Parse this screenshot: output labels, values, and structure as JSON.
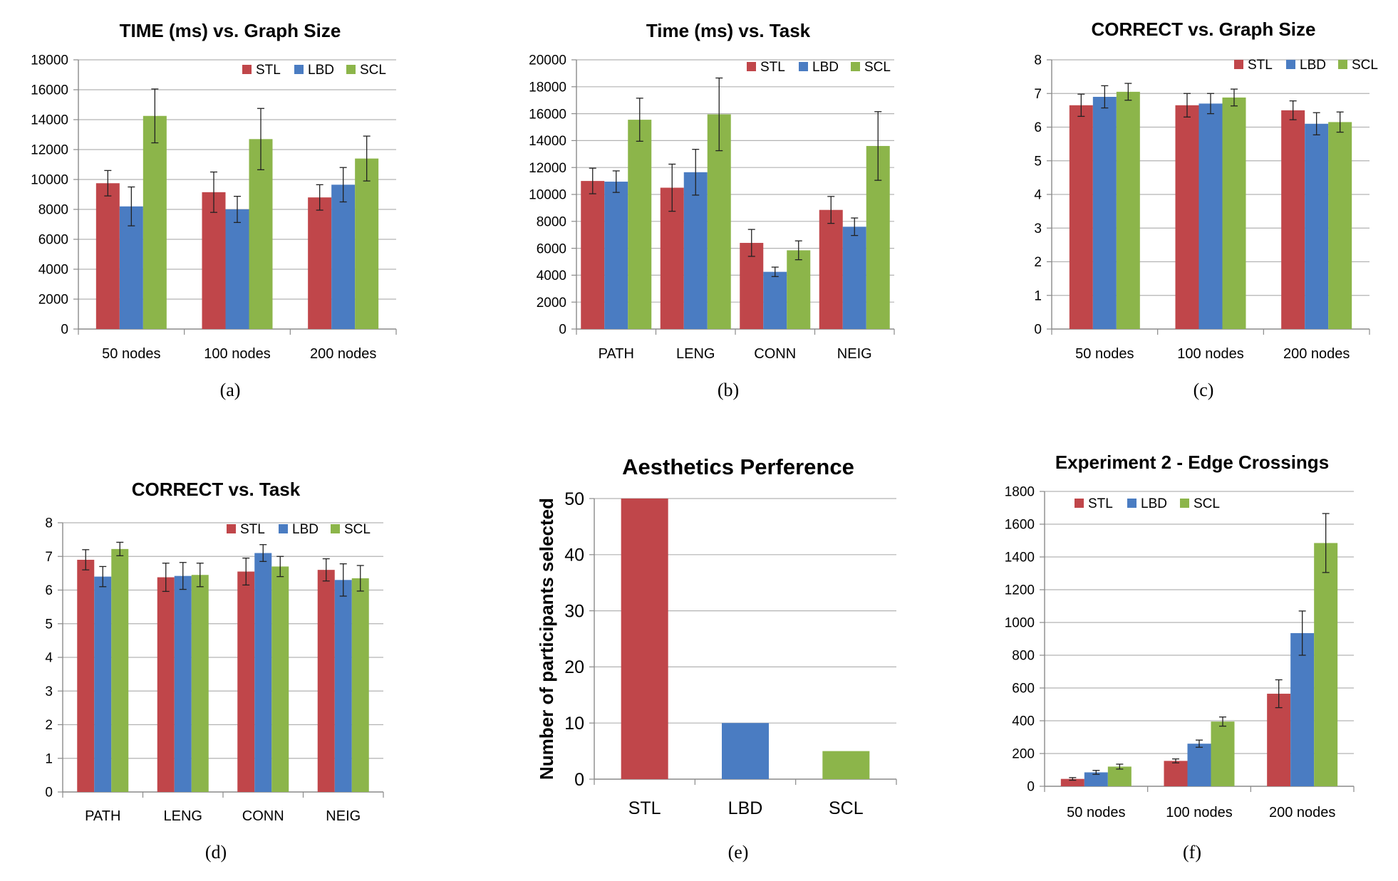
{
  "colors": {
    "STL": "#c0464a",
    "LBD": "#4a7cc2",
    "SCL": "#8cb54a",
    "grid": "#b3b3b3",
    "axis": "#8a8a8a"
  },
  "chart_data": [
    {
      "type": "bar",
      "title": "TIME (ms) vs. Graph Size",
      "caption": "(a)",
      "categories": [
        "50 nodes",
        "100 nodes",
        "200 nodes"
      ],
      "ylim": [
        0,
        18000
      ],
      "yticks": [
        0,
        2000,
        4000,
        6000,
        8000,
        10000,
        12000,
        14000,
        16000,
        18000
      ],
      "legend_position": "top-right",
      "grid": true,
      "series": [
        {
          "name": "STL",
          "values": [
            9750,
            9150,
            8800
          ],
          "errors": [
            850,
            1350,
            850
          ]
        },
        {
          "name": "LBD",
          "values": [
            8200,
            8000,
            9650
          ],
          "errors": [
            1300,
            875,
            1150
          ]
        },
        {
          "name": "SCL",
          "values": [
            14250,
            12700,
            11400
          ],
          "errors": [
            1800,
            2050,
            1500
          ]
        }
      ]
    },
    {
      "type": "bar",
      "title": "Time (ms) vs. Task",
      "caption": "(b)",
      "categories": [
        "PATH",
        "LENG",
        "CONN",
        "NEIG"
      ],
      "ylim": [
        0,
        20000
      ],
      "yticks": [
        0,
        2000,
        4000,
        6000,
        8000,
        10000,
        12000,
        14000,
        16000,
        18000,
        20000
      ],
      "legend_position": "top-right",
      "grid": true,
      "series": [
        {
          "name": "STL",
          "values": [
            11000,
            10500,
            6400,
            8850
          ],
          "errors": [
            950,
            1750,
            1000,
            1000
          ]
        },
        {
          "name": "LBD",
          "values": [
            10950,
            11650,
            4250,
            7600
          ],
          "errors": [
            800,
            1700,
            350,
            650
          ]
        },
        {
          "name": "SCL",
          "values": [
            15550,
            15950,
            5850,
            13600
          ],
          "errors": [
            1600,
            2700,
            700,
            2550
          ]
        }
      ]
    },
    {
      "type": "bar",
      "title": "CORRECT vs. Graph Size",
      "caption": "(c)",
      "categories": [
        "50 nodes",
        "100 nodes",
        "200 nodes"
      ],
      "ylim": [
        0,
        8
      ],
      "yticks": [
        0,
        1,
        2,
        3,
        4,
        5,
        6,
        7,
        8
      ],
      "legend_position": "top-right",
      "grid": true,
      "series": [
        {
          "name": "STL",
          "values": [
            6.65,
            6.65,
            6.5
          ],
          "errors": [
            0.33,
            0.35,
            0.28
          ]
        },
        {
          "name": "LBD",
          "values": [
            6.9,
            6.7,
            6.1
          ],
          "errors": [
            0.33,
            0.3,
            0.33
          ]
        },
        {
          "name": "SCL",
          "values": [
            7.05,
            6.88,
            6.15
          ],
          "errors": [
            0.25,
            0.25,
            0.3
          ]
        }
      ]
    },
    {
      "type": "bar",
      "title": "CORRECT vs. Task",
      "caption": "(d)",
      "categories": [
        "PATH",
        "LENG",
        "CONN",
        "NEIG"
      ],
      "ylim": [
        0,
        8
      ],
      "yticks": [
        0,
        1,
        2,
        3,
        4,
        5,
        6,
        7,
        8
      ],
      "legend_position": "top-right",
      "grid": true,
      "series": [
        {
          "name": "STL",
          "values": [
            6.9,
            6.38,
            6.55,
            6.6
          ],
          "errors": [
            0.3,
            0.42,
            0.4,
            0.33
          ]
        },
        {
          "name": "LBD",
          "values": [
            6.4,
            6.42,
            7.1,
            6.3
          ],
          "errors": [
            0.3,
            0.4,
            0.25,
            0.48
          ]
        },
        {
          "name": "SCL",
          "values": [
            7.22,
            6.45,
            6.7,
            6.35
          ],
          "errors": [
            0.2,
            0.35,
            0.3,
            0.38
          ]
        }
      ]
    },
    {
      "type": "bar",
      "title": "Aesthetics Perference",
      "caption": "(e)",
      "ylabel": "Number of participants selected",
      "categories": [
        "STL",
        "LBD",
        "SCL"
      ],
      "ylim": [
        0,
        50
      ],
      "yticks": [
        0,
        10,
        20,
        30,
        40,
        50
      ],
      "grid": true,
      "values": [
        50,
        10,
        5
      ],
      "colors": [
        "#c0464a",
        "#4a7cc2",
        "#8cb54a"
      ]
    },
    {
      "type": "bar",
      "title": "Experiment 2 - Edge Crossings",
      "caption": "(f)",
      "categories": [
        "50 nodes",
        "100 nodes",
        "200 nodes"
      ],
      "ylim": [
        0,
        1800
      ],
      "yticks": [
        0,
        200,
        400,
        600,
        800,
        1000,
        1200,
        1400,
        1600,
        1800
      ],
      "legend_position": "top-left",
      "grid": true,
      "series": [
        {
          "name": "STL",
          "values": [
            45,
            155,
            565
          ],
          "errors": [
            8,
            12,
            85
          ]
        },
        {
          "name": "LBD",
          "values": [
            85,
            260,
            935
          ],
          "errors": [
            12,
            22,
            135
          ]
        },
        {
          "name": "SCL",
          "values": [
            120,
            395,
            1485
          ],
          "errors": [
            15,
            28,
            180
          ]
        }
      ]
    }
  ]
}
